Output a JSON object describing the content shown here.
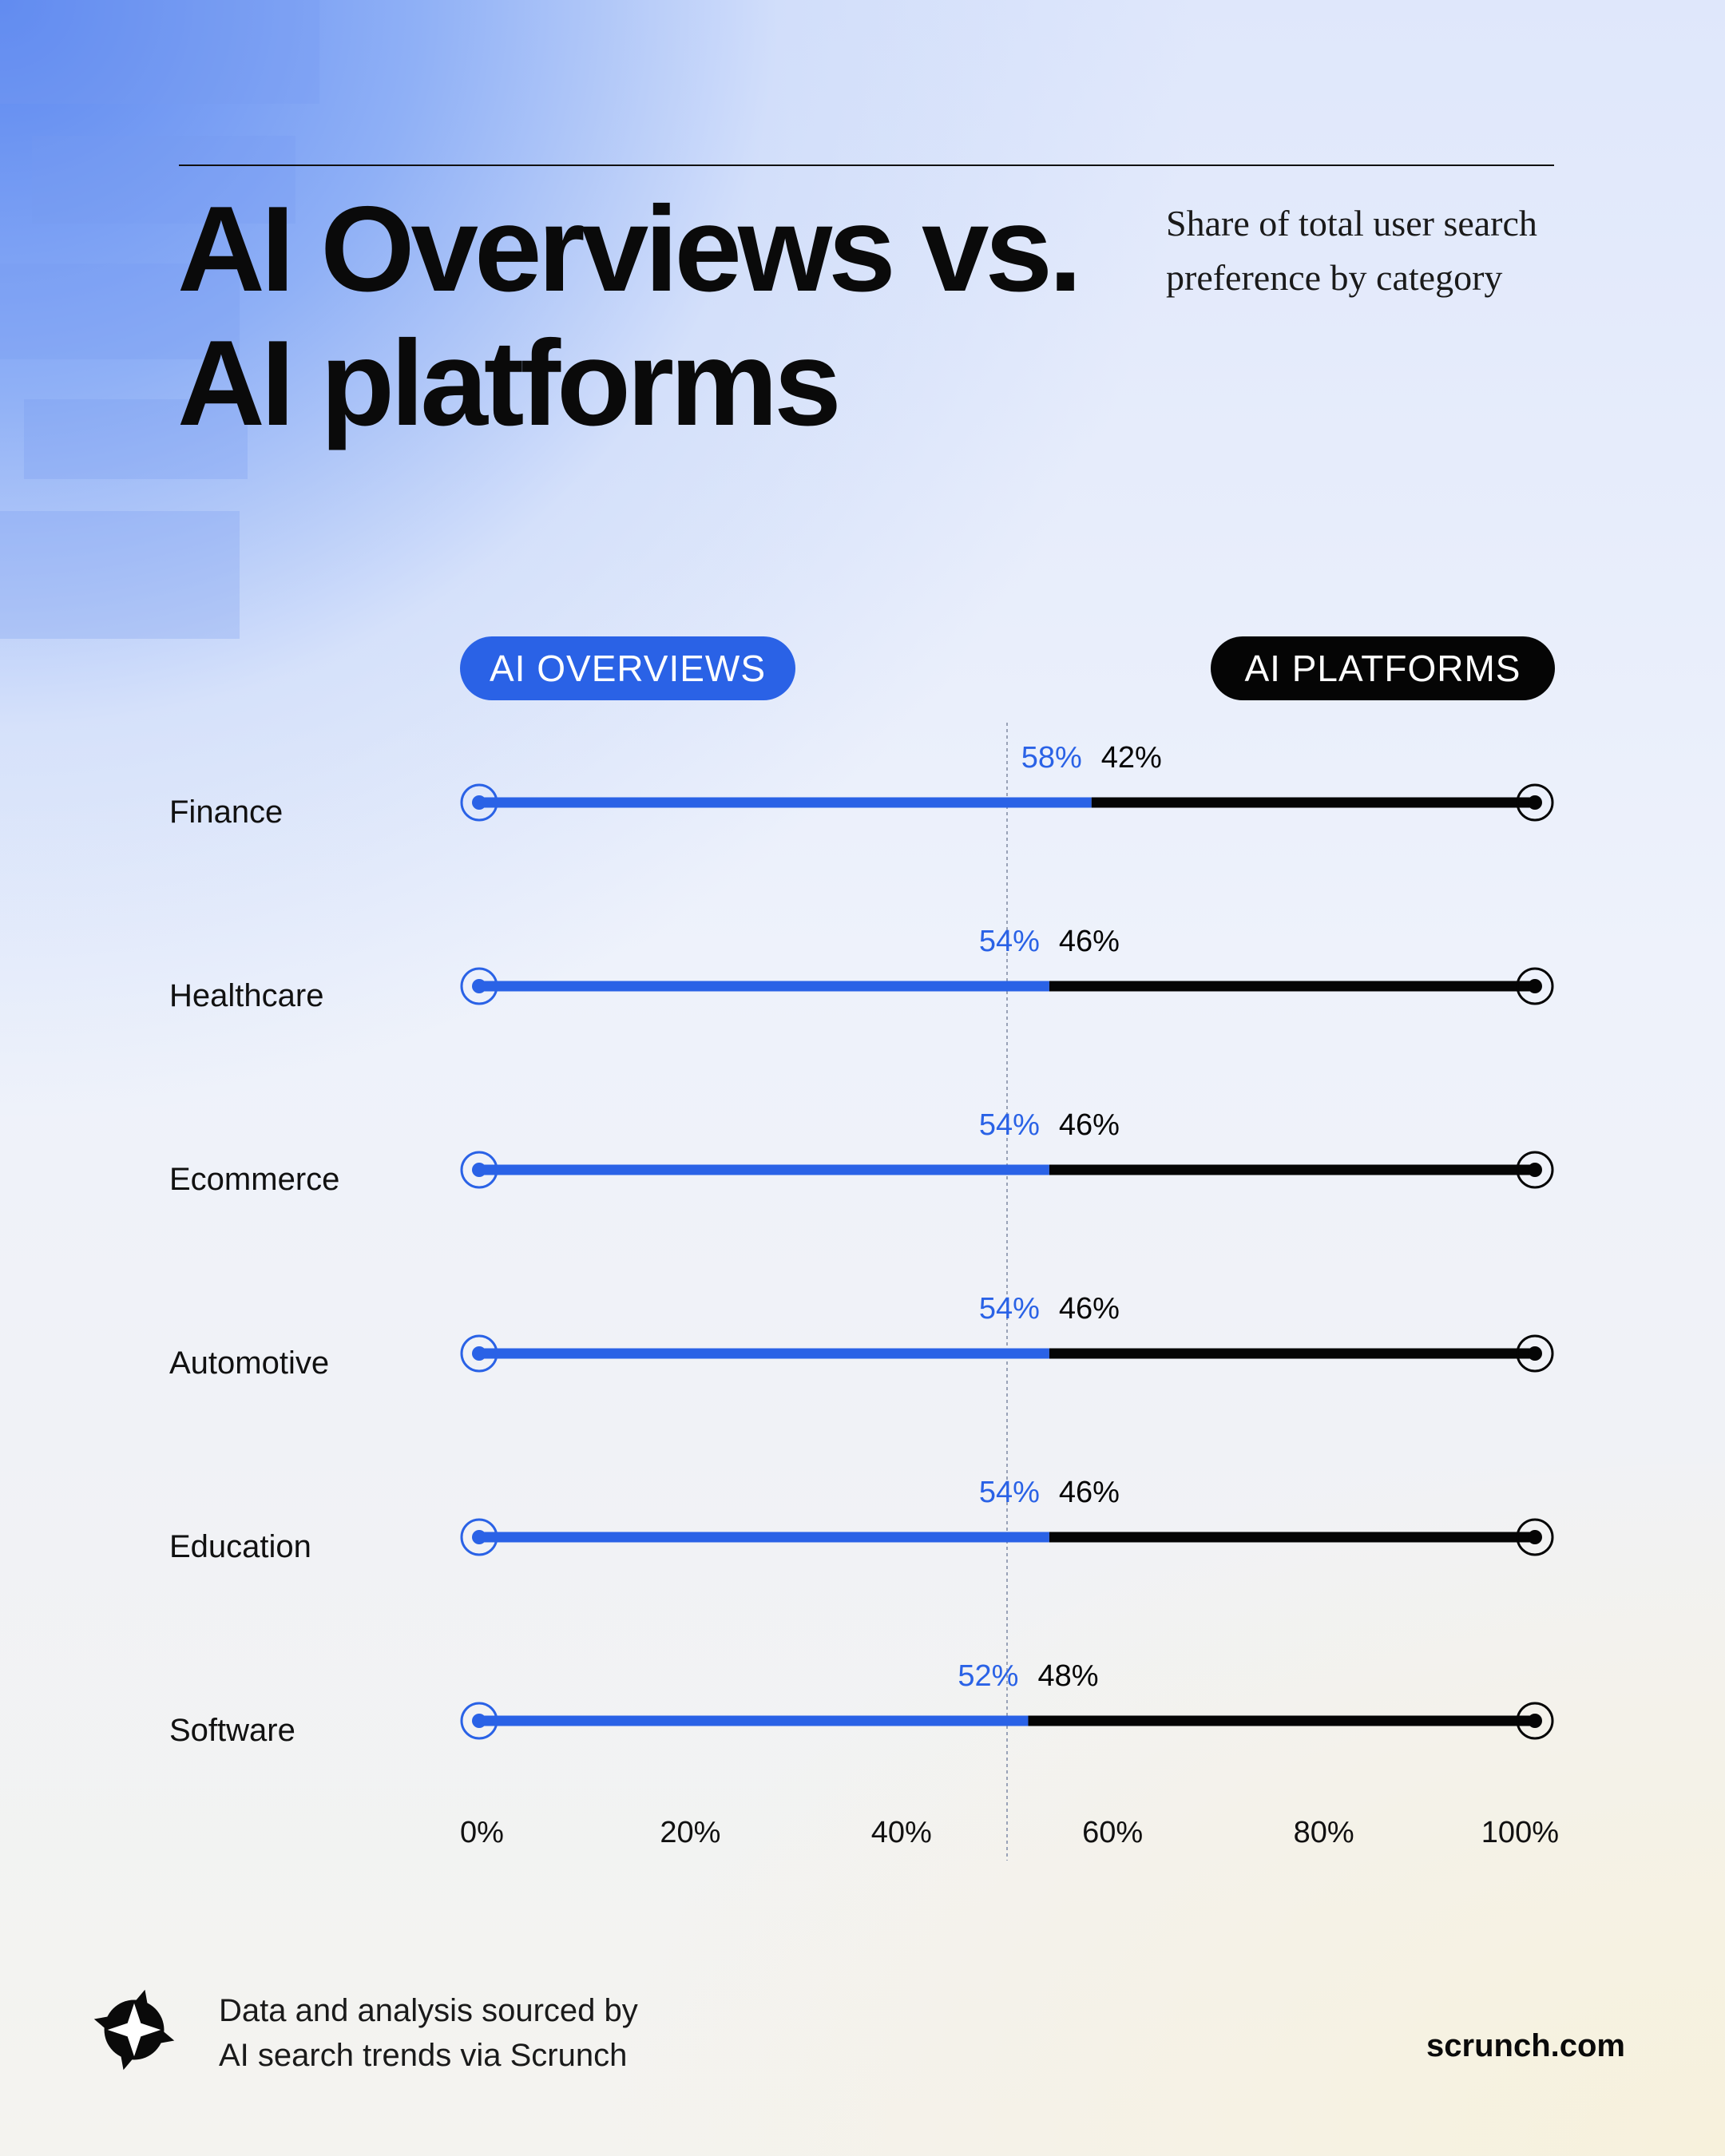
{
  "header": {
    "title_line1": "AI Overviews vs.",
    "title_line2": "AI platforms",
    "subtitle_line1": "Share of total user search",
    "subtitle_line2": "preference by category"
  },
  "legend": {
    "left": "AI OVERVIEWS",
    "right": "AI PLATFORMS"
  },
  "colors": {
    "ai_overviews": "#2a62e6",
    "ai_platforms": "#050505"
  },
  "chart_data": {
    "type": "bar",
    "orientation": "horizontal",
    "stacked": true,
    "categories": [
      "Finance",
      "Healthcare",
      "Ecommerce",
      "Automotive",
      "Education",
      "Software"
    ],
    "series": [
      {
        "name": "AI OVERVIEWS",
        "values": [
          58,
          54,
          54,
          54,
          54,
          52
        ],
        "labels": [
          "58%",
          "54%",
          "54%",
          "54%",
          "54%",
          "52%"
        ]
      },
      {
        "name": "AI PLATFORMS",
        "values": [
          42,
          46,
          46,
          46,
          46,
          48
        ],
        "labels": [
          "42%",
          "46%",
          "46%",
          "46%",
          "46%",
          "48%"
        ]
      }
    ],
    "xlim": [
      0,
      100
    ],
    "x_ticks": [
      0,
      20,
      40,
      60,
      80,
      100
    ],
    "x_tick_labels": [
      "0%",
      "20%",
      "40%",
      "60%",
      "80%",
      "100%"
    ],
    "reference_line": 50,
    "grid": false
  },
  "footer": {
    "source_line1": "Data and analysis sourced by",
    "source_line2": "AI search trends via Scrunch",
    "website": "scrunch.com",
    "logo_icon": "star-logo-icon"
  }
}
